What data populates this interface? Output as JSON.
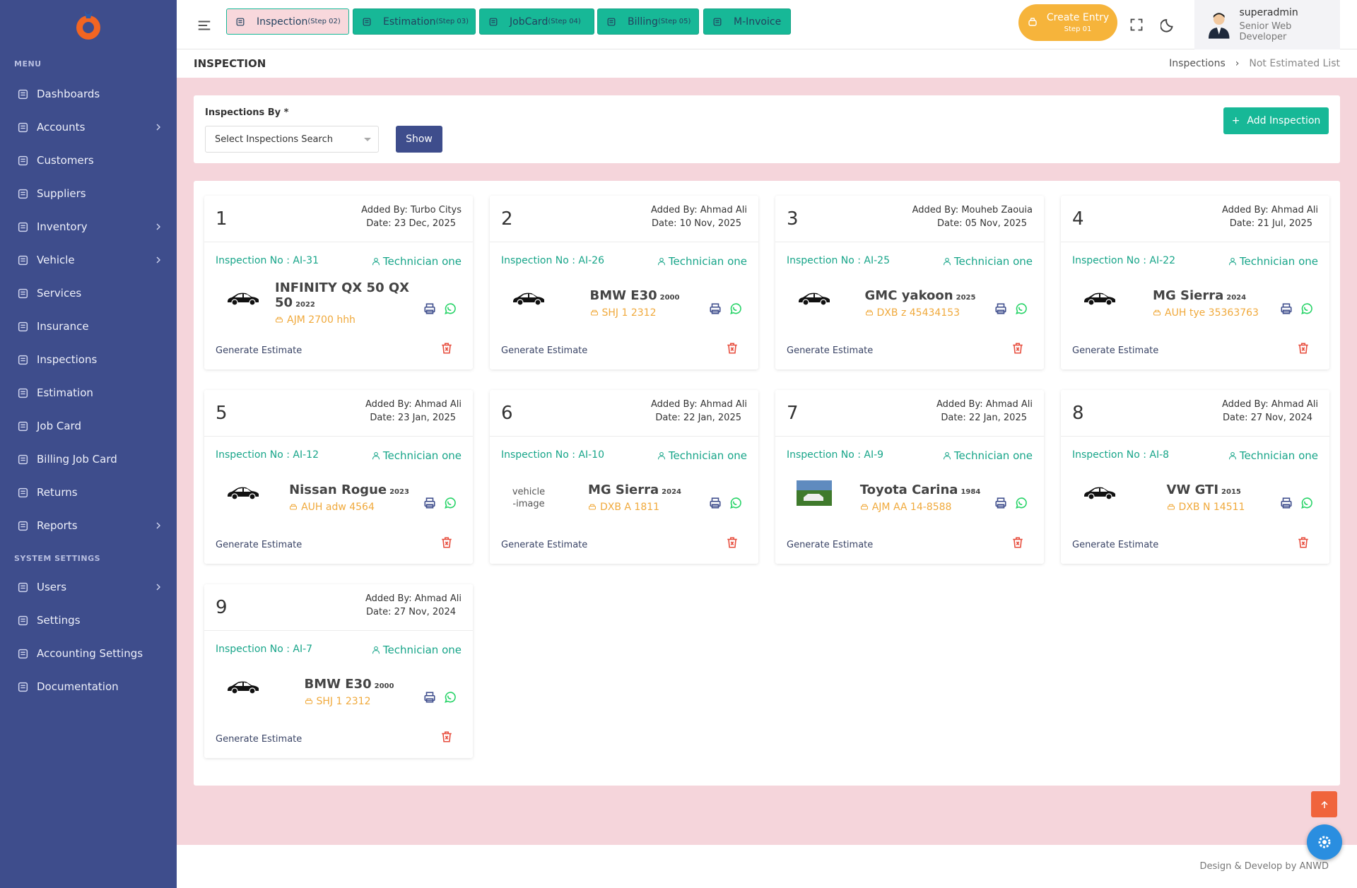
{
  "sidebar": {
    "menu_label": "MENU",
    "items": [
      {
        "label": "Dashboards",
        "submenu": false
      },
      {
        "label": "Accounts",
        "submenu": true
      },
      {
        "label": "Customers",
        "submenu": false
      },
      {
        "label": "Suppliers",
        "submenu": false
      },
      {
        "label": "Inventory",
        "submenu": true
      },
      {
        "label": "Vehicle",
        "submenu": true
      },
      {
        "label": "Services",
        "submenu": false
      },
      {
        "label": "Insurance",
        "submenu": false
      },
      {
        "label": "Inspections",
        "submenu": false
      },
      {
        "label": "Estimation",
        "submenu": false
      },
      {
        "label": "Job Card",
        "submenu": false
      },
      {
        "label": "Billing Job Card",
        "submenu": false
      },
      {
        "label": "Returns",
        "submenu": false
      },
      {
        "label": "Reports",
        "submenu": true
      }
    ],
    "system_label": "SYSTEM SETTINGS",
    "system_items": [
      {
        "label": "Users",
        "submenu": true
      },
      {
        "label": "Settings",
        "submenu": false
      },
      {
        "label": "Accounting Settings",
        "submenu": false
      },
      {
        "label": "Documentation",
        "submenu": false
      }
    ]
  },
  "topbar": {
    "steps": [
      {
        "label": "Inspection",
        "step": "(Step 02)"
      },
      {
        "label": "Estimation",
        "step": "(Step 03)"
      },
      {
        "label": "JobCard",
        "step": "(Step 04)"
      },
      {
        "label": "Billing",
        "step": "(Step 05)"
      },
      {
        "label": "M-Invoice"
      }
    ],
    "create_entry": {
      "label": "Create Entry",
      "step": "Step 01"
    },
    "user": {
      "name": "superadmin",
      "role": "Senior Web Developer"
    }
  },
  "page_header": {
    "title": "INSPECTION",
    "breadcrumb": [
      "Inspections",
      "Not Estimated List"
    ]
  },
  "filter": {
    "label": "Inspections By *",
    "placeholder": "Select Inspections Search",
    "button": "Show",
    "add_button": "Add Inspection"
  },
  "cards": [
    {
      "number": 1,
      "added_by": "Added By: Turbo Citys",
      "date": "Date: 23 Dec, 2025",
      "inspection_no": "Inspection No : AI-31",
      "technician": "Technician one",
      "vehicle": "INFINITY QX 50 QX 50",
      "year": 2022,
      "plate": "AJM 2700 hhh",
      "action": "Generate Estimate"
    },
    {
      "number": 2,
      "added_by": "Added By: Ahmad Ali",
      "date": "Date: 10 Nov, 2025",
      "inspection_no": "Inspection No : AI-26",
      "technician": "Technician one",
      "vehicle": "BMW E30",
      "year": 2000,
      "plate": "SHJ 1 2312",
      "action": "Generate Estimate"
    },
    {
      "number": 3,
      "added_by": "Added By: Mouheb Zaouia",
      "date": "Date: 05 Nov, 2025",
      "inspection_no": "Inspection No : AI-25",
      "technician": "Technician one",
      "vehicle": "GMC yakoon",
      "year": 2025,
      "plate": "DXB z 45434153",
      "action": "Generate Estimate"
    },
    {
      "number": 4,
      "added_by": "Added By: Ahmad Ali",
      "date": "Date: 21 Jul, 2025",
      "inspection_no": "Inspection No : AI-22",
      "technician": "Technician one",
      "vehicle": "MG Sierra",
      "year": 2024,
      "plate": "AUH tye 35363763",
      "action": "Generate Estimate"
    },
    {
      "number": 5,
      "added_by": "Added By: Ahmad Ali",
      "date": "Date: 23 Jan, 2025",
      "inspection_no": "Inspection No : AI-12",
      "technician": "Technician one",
      "vehicle": "Nissan Rogue",
      "year": 2023,
      "plate": "AUH adw 4564",
      "action": "Generate Estimate"
    },
    {
      "number": 6,
      "added_by": "Added By: Ahmad Ali",
      "date": "Date: 22 Jan, 2025",
      "inspection_no": "Inspection No : AI-10",
      "technician": "Technician one",
      "vehicle": "MG Sierra",
      "year": 2024,
      "plate": "DXB A 1811",
      "action": "Generate Estimate",
      "image_alt": "vehicle-image"
    },
    {
      "number": 7,
      "added_by": "Added By: Ahmad Ali",
      "date": "Date: 22 Jan, 2025",
      "inspection_no": "Inspection No : AI-9",
      "technician": "Technician one",
      "vehicle": "Toyota Carina",
      "year": 1984,
      "plate": "AJM AA 14-8588",
      "action": "Generate Estimate",
      "photo": true
    },
    {
      "number": 8,
      "added_by": "Added By: Ahmad Ali",
      "date": "Date: 27 Nov, 2024",
      "inspection_no": "Inspection No : AI-8",
      "technician": "Technician one",
      "vehicle": "VW GTI",
      "year": 2015,
      "plate": "DXB N 14511",
      "action": "Generate Estimate"
    },
    {
      "number": 9,
      "added_by": "Added By: Ahmad Ali",
      "date": "Date: 27 Nov, 2024",
      "inspection_no": "Inspection No : AI-7",
      "technician": "Technician one",
      "vehicle": "BMW E30",
      "year": 2000,
      "plate": "SHJ 1 2312",
      "action": "Generate Estimate"
    }
  ],
  "footer": "Design & Develop by ANWD"
}
